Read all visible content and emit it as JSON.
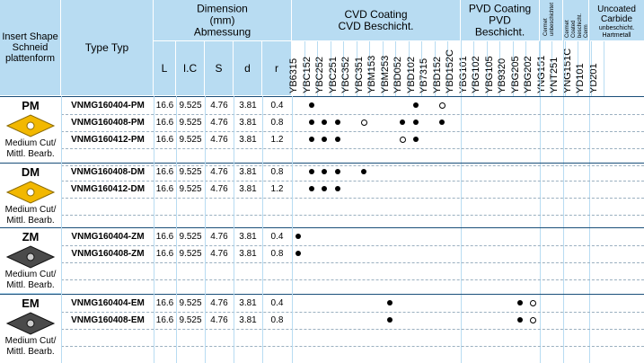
{
  "header": {
    "insert_shape": "Insert Shape Schneid plattenform",
    "type": "Type Typ",
    "dimension": "Dimension (mm) Abmessung",
    "dims": [
      "L",
      "I.C",
      "S",
      "d",
      "r"
    ],
    "cvd": "CVD Coating CVD Beschicht.",
    "pvd": "PVD Coating PVD Beschicht.",
    "cermet": "Cermet unbeschichtet",
    "cermet_coated": "Cermet Coated beschicht. Cerm",
    "uncoated": "Uncoated Carbide",
    "uncoated_sub": "unbeschicht. Hartmetall"
  },
  "grades": {
    "cvd": [
      "YB6315",
      "YBC152",
      "YBC252",
      "YBC251",
      "YBC352",
      "YBC351",
      "YBM153",
      "YBM253",
      "YBD052",
      "YBD102",
      "YB7315",
      "YBD152",
      "YBD152C"
    ],
    "pvd": [
      "YBG101",
      "YBG102",
      "YBG105",
      "YB9320",
      "YBG205",
      "YBG202"
    ],
    "cermet": [
      "YNG151",
      "YNT251"
    ],
    "cermet_coated": [
      "YNG151C"
    ],
    "uncoated": [
      "YD101",
      "YD201"
    ]
  },
  "groups": [
    {
      "name": "PM",
      "desc": "Medium Cut/ Mittl. Bearb.",
      "color": "#f2b800",
      "rows": [
        {
          "type": "VNMG160404-PM",
          "L": "16.6",
          "IC": "9.525",
          "S": "4.76",
          "d": "3.81",
          "r": "0.4",
          "marks": {
            "YBC152": "dot",
            "YBD102": "dot",
            "YBD152": "ring"
          }
        },
        {
          "type": "VNMG160408-PM",
          "L": "16.6",
          "IC": "9.525",
          "S": "4.76",
          "d": "3.81",
          "r": "0.8",
          "marks": {
            "YBC152": "dot",
            "YBC252": "dot",
            "YBC251": "dot",
            "YBC351": "ring",
            "YBD052": "dot",
            "YBD102": "dot",
            "YBD152": "dot"
          }
        },
        {
          "type": "VNMG160412-PM",
          "L": "16.6",
          "IC": "9.525",
          "S": "4.76",
          "d": "3.81",
          "r": "1.2",
          "marks": {
            "YBC152": "dot",
            "YBC252": "dot",
            "YBC251": "dot",
            "YBD052": "ring",
            "YBD102": "dot"
          }
        }
      ]
    },
    {
      "name": "DM",
      "desc": "Medium Cut/ Mittl. Bearb.",
      "color": "#f2b800",
      "rows": [
        {
          "type": "VNMG160408-DM",
          "L": "16.6",
          "IC": "9.525",
          "S": "4.76",
          "d": "3.81",
          "r": "0.8",
          "marks": {
            "YBC152": "dot",
            "YBC252": "dot",
            "YBC251": "dot",
            "YBC351": "dot"
          }
        },
        {
          "type": "VNMG160412-DM",
          "L": "16.6",
          "IC": "9.525",
          "S": "4.76",
          "d": "3.81",
          "r": "1.2",
          "marks": {
            "YBC152": "dot",
            "YBC252": "dot",
            "YBC251": "dot"
          }
        }
      ]
    },
    {
      "name": "ZM",
      "desc": "Medium Cut/ Mittl. Bearb.",
      "color": "#555555",
      "rows": [
        {
          "type": "VNMG160404-ZM",
          "L": "16.6",
          "IC": "9.525",
          "S": "4.76",
          "d": "3.81",
          "r": "0.4",
          "marks": {
            "YB6315": "dot"
          }
        },
        {
          "type": "VNMG160408-ZM",
          "L": "16.6",
          "IC": "9.525",
          "S": "4.76",
          "d": "3.81",
          "r": "0.8",
          "marks": {
            "YB6315": "dot"
          }
        }
      ]
    },
    {
      "name": "EM",
      "desc": "Medium Cut/ Mittl. Bearb.",
      "color": "#555555",
      "rows": [
        {
          "type": "VNMG160404-EM",
          "L": "16.6",
          "IC": "9.525",
          "S": "4.76",
          "d": "3.81",
          "r": "0.4",
          "marks": {
            "YBM253": "dot",
            "YBG205": "dot",
            "YBG202": "ring"
          }
        },
        {
          "type": "VNMG160408-EM",
          "L": "16.6",
          "IC": "9.525",
          "S": "4.76",
          "d": "3.81",
          "r": "0.8",
          "marks": {
            "YBM253": "dot",
            "YBG205": "dot",
            "YBG202": "ring"
          }
        }
      ]
    }
  ]
}
